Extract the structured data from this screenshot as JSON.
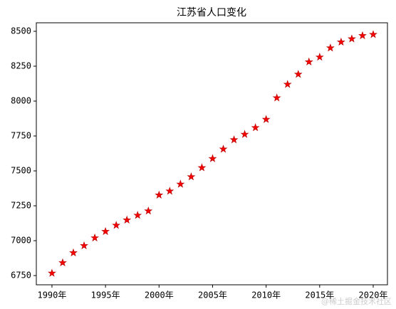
{
  "chart_data": {
    "type": "scatter",
    "title": "江苏省人口变化",
    "x": [
      1990,
      1991,
      1992,
      1993,
      1994,
      1995,
      1996,
      1997,
      1998,
      1999,
      2000,
      2001,
      2002,
      2003,
      2004,
      2005,
      2006,
      2007,
      2008,
      2009,
      2010,
      2011,
      2012,
      2013,
      2014,
      2015,
      2016,
      2017,
      2018,
      2019,
      2020
    ],
    "values": [
      6767,
      6842,
      6913,
      6964,
      7020,
      7066,
      7110,
      7148,
      7182,
      7213,
      7327,
      7355,
      7405,
      7458,
      7523,
      7588,
      7656,
      7723,
      7762,
      7810,
      7869,
      8023,
      8120,
      8192,
      8281,
      8315,
      8381,
      8423,
      8446,
      8469,
      8477
    ],
    "color": "#ff0000",
    "edge_color": "#c00000",
    "marker": "star",
    "xlim": [
      1988.54,
      2021.33
    ],
    "ylim": [
      6684,
      8561
    ],
    "xticks": [
      {
        "value": 1990,
        "label": "1990年"
      },
      {
        "value": 1995,
        "label": "1995年"
      },
      {
        "value": 2000,
        "label": "2000年"
      },
      {
        "value": 2005,
        "label": "2005年"
      },
      {
        "value": 2010,
        "label": "2010年"
      },
      {
        "value": 2015,
        "label": "2015年"
      },
      {
        "value": 2020,
        "label": "2020年"
      }
    ],
    "yticks": [
      6750,
      7000,
      7250,
      7500,
      7750,
      8000,
      8250,
      8500
    ],
    "grid": false
  },
  "watermark": "@稀土掘金技术社区"
}
